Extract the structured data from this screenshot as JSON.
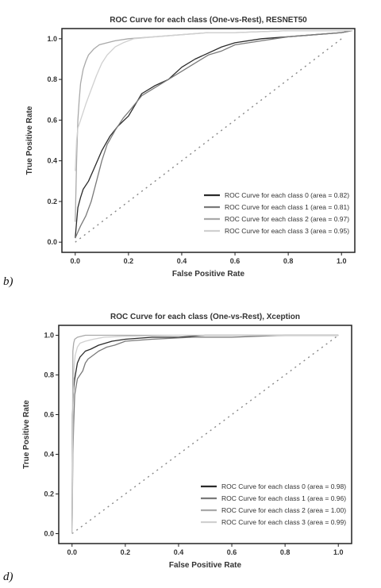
{
  "chart_data": [
    {
      "type": "line",
      "panel_label": "b)",
      "title": "ROC Curve for each class (One-vs-Rest), RESNET50",
      "xlabel": "False Positive Rate",
      "ylabel": "True Positive Rate",
      "xlim": [
        -0.05,
        1.05
      ],
      "ylim": [
        -0.05,
        1.05
      ],
      "xticks": [
        0.0,
        0.2,
        0.4,
        0.6,
        0.8,
        1.0
      ],
      "xtick_labels": [
        "0.0",
        "0.2",
        "0.4",
        "0.6",
        "0.8",
        "1.0"
      ],
      "yticks": [
        0.0,
        0.2,
        0.4,
        0.6,
        0.8,
        1.0
      ],
      "ytick_labels": [
        "0.0",
        "0.2",
        "0.4",
        "0.6",
        "0.8",
        "1.0"
      ],
      "grid": false,
      "legend_position": "lower-right",
      "diagonal": true,
      "series": [
        {
          "name": "ROC Curve for each class 0 (area = 0.82)",
          "color": "#2b2b2b",
          "x": [
            0.0,
            0.005,
            0.01,
            0.02,
            0.03,
            0.05,
            0.07,
            0.1,
            0.13,
            0.16,
            0.2,
            0.25,
            0.3,
            0.35,
            0.4,
            0.45,
            0.5,
            0.55,
            0.6,
            0.7,
            0.8,
            0.9,
            1.0,
            1.04
          ],
          "y": [
            0.02,
            0.1,
            0.17,
            0.22,
            0.26,
            0.3,
            0.36,
            0.45,
            0.52,
            0.57,
            0.62,
            0.73,
            0.77,
            0.8,
            0.86,
            0.9,
            0.93,
            0.96,
            0.98,
            1.0,
            1.01,
            1.02,
            1.03,
            1.04
          ]
        },
        {
          "name": "ROC Curve for each class 1 (area = 0.81)",
          "color": "#7a7a7a",
          "x": [
            0.0,
            0.01,
            0.02,
            0.04,
            0.06,
            0.08,
            0.1,
            0.12,
            0.15,
            0.18,
            0.2,
            0.25,
            0.3,
            0.35,
            0.4,
            0.45,
            0.5,
            0.55,
            0.6,
            0.7,
            0.8,
            0.9,
            1.0,
            1.04
          ],
          "y": [
            0.02,
            0.05,
            0.08,
            0.13,
            0.2,
            0.3,
            0.4,
            0.48,
            0.55,
            0.61,
            0.64,
            0.72,
            0.76,
            0.8,
            0.84,
            0.88,
            0.92,
            0.94,
            0.97,
            0.99,
            1.01,
            1.02,
            1.03,
            1.04
          ]
        },
        {
          "name": "ROC Curve for each class 2 (area = 0.97)",
          "color": "#a9a9a9",
          "x": [
            0.0,
            0.005,
            0.01,
            0.015,
            0.02,
            0.03,
            0.04,
            0.05,
            0.07,
            0.09,
            0.12,
            0.15,
            0.2,
            0.3,
            0.4,
            0.5,
            0.6,
            0.8,
            1.0,
            1.04
          ],
          "y": [
            0.1,
            0.4,
            0.6,
            0.7,
            0.78,
            0.85,
            0.89,
            0.92,
            0.95,
            0.97,
            0.98,
            0.99,
            1.0,
            1.01,
            1.02,
            1.03,
            1.03,
            1.04,
            1.04,
            1.04
          ]
        },
        {
          "name": "ROC Curve for each class 3 (area = 0.95)",
          "color": "#d0d0d0",
          "x": [
            0.0,
            0.005,
            0.01,
            0.02,
            0.04,
            0.06,
            0.08,
            0.1,
            0.12,
            0.15,
            0.18,
            0.22,
            0.3,
            0.4,
            0.5,
            0.6,
            0.8,
            1.0,
            1.04
          ],
          "y": [
            0.35,
            0.5,
            0.56,
            0.6,
            0.68,
            0.75,
            0.82,
            0.88,
            0.92,
            0.96,
            0.98,
            1.0,
            1.01,
            1.02,
            1.03,
            1.03,
            1.04,
            1.04,
            1.04
          ]
        }
      ]
    },
    {
      "type": "line",
      "panel_label": "d)",
      "title": "ROC Curve for each class (One-vs-Rest), Xception",
      "xlabel": "False Positive Rate",
      "ylabel": "True Positive Rate",
      "xlim": [
        -0.05,
        1.05
      ],
      "ylim": [
        -0.05,
        1.05
      ],
      "xticks": [
        0.0,
        0.2,
        0.4,
        0.6,
        0.8,
        1.0
      ],
      "xtick_labels": [
        "0.0",
        "0.2",
        "0.4",
        "0.6",
        "0.8",
        "1.0"
      ],
      "yticks": [
        0.0,
        0.2,
        0.4,
        0.6,
        0.8,
        1.0
      ],
      "ytick_labels": [
        "0.0",
        "0.2",
        "0.4",
        "0.6",
        "0.8",
        "1.0"
      ],
      "grid": false,
      "legend_position": "lower-right",
      "diagonal": true,
      "series": [
        {
          "name": "ROC Curve for each class 0 (area = 0.98)",
          "color": "#2b2b2b",
          "x": [
            0.0,
            0.002,
            0.005,
            0.01,
            0.015,
            0.02,
            0.03,
            0.05,
            0.07,
            0.1,
            0.15,
            0.2,
            0.3,
            0.4,
            0.5,
            0.7,
            1.0
          ],
          "y": [
            0.0,
            0.6,
            0.72,
            0.78,
            0.82,
            0.86,
            0.89,
            0.92,
            0.93,
            0.95,
            0.97,
            0.98,
            0.99,
            0.99,
            1.0,
            1.0,
            1.0
          ]
        },
        {
          "name": "ROC Curve for each class 1 (area = 0.96)",
          "color": "#7a7a7a",
          "x": [
            0.0,
            0.003,
            0.006,
            0.01,
            0.015,
            0.02,
            0.03,
            0.04,
            0.05,
            0.06,
            0.08,
            0.1,
            0.13,
            0.16,
            0.2,
            0.3,
            0.45,
            0.6,
            0.8,
            1.0
          ],
          "y": [
            0.0,
            0.4,
            0.55,
            0.7,
            0.74,
            0.78,
            0.8,
            0.82,
            0.86,
            0.88,
            0.9,
            0.92,
            0.94,
            0.95,
            0.97,
            0.98,
            0.99,
            0.99,
            1.0,
            1.0
          ]
        },
        {
          "name": "ROC Curve for each class 2 (area = 1.00)",
          "color": "#a9a9a9",
          "x": [
            0.0,
            0.003,
            0.006,
            0.01,
            0.02,
            0.05,
            0.1,
            0.3,
            0.6,
            1.0
          ],
          "y": [
            0.0,
            0.92,
            0.96,
            0.98,
            0.99,
            1.0,
            1.0,
            1.0,
            1.0,
            1.0
          ]
        },
        {
          "name": "ROC Curve for each class 3 (area = 0.99)",
          "color": "#d0d0d0",
          "x": [
            0.0,
            0.004,
            0.008,
            0.012,
            0.02,
            0.03,
            0.05,
            0.08,
            0.12,
            0.2,
            0.4,
            0.7,
            1.0
          ],
          "y": [
            0.0,
            0.7,
            0.85,
            0.9,
            0.94,
            0.96,
            0.97,
            0.98,
            0.99,
            0.995,
            1.0,
            1.0,
            1.0
          ]
        }
      ]
    }
  ]
}
